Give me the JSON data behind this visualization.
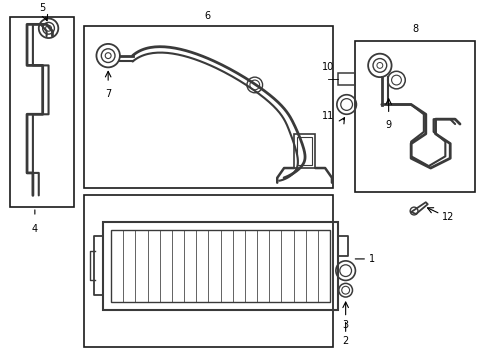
{
  "background_color": "#ffffff",
  "border_color": "#1a1a1a",
  "line_color": "#3a3a3a",
  "text_color": "#000000",
  "fig_width": 4.89,
  "fig_height": 3.6,
  "dpi": 100
}
